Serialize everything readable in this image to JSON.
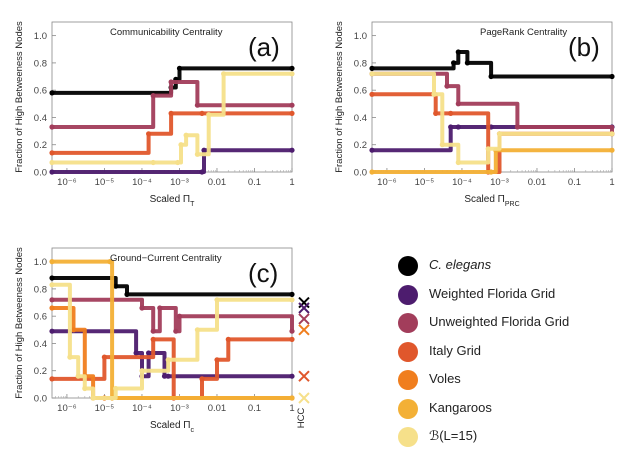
{
  "colors": {
    "c_elegans": "#000000",
    "weighted_florida": "#4d1c6e",
    "unweighted_florida": "#a23d5b",
    "italy": "#e0572c",
    "voles": "#f07e1e",
    "kangaroos": "#f3b036",
    "b_l15": "#f6e08a"
  },
  "legend": [
    {
      "key": "c_elegans",
      "label": "C. elegans",
      "italic": true
    },
    {
      "key": "weighted_florida",
      "label": "Weighted Florida Grid",
      "italic": false
    },
    {
      "key": "unweighted_florida",
      "label": "Unweighted Florida Grid",
      "italic": false
    },
    {
      "key": "italy",
      "label": "Italy Grid",
      "italic": false
    },
    {
      "key": "voles",
      "label": "Voles",
      "italic": false
    },
    {
      "key": "kangaroos",
      "label": "Kangaroos",
      "italic": false
    },
    {
      "key": "b_l15",
      "label": "ℬ(L=15)",
      "italic": false
    }
  ],
  "chart_data": [
    {
      "type": "line",
      "panel_letter": "(a)",
      "title": "Communicability Centrality",
      "xlabel": "Scaled Π",
      "xlabel_sub": "T",
      "ylabel": "Fraction of High Betweeness Nodes",
      "x_scale": "log",
      "xlim": [
        4e-07,
        1
      ],
      "ylim": [
        0,
        1.1
      ],
      "x_ticks": [
        1e-06,
        1e-05,
        0.0001,
        0.001,
        0.01,
        0.1,
        1
      ],
      "x_tick_labels": [
        "10⁻⁶",
        "10⁻⁵",
        "10⁻⁴",
        "10⁻³",
        "0.01",
        "0.1",
        "1"
      ],
      "y_ticks": [
        0,
        0.2,
        0.4,
        0.6,
        0.8,
        1.0
      ],
      "y_tick_labels": [
        "0.0",
        "0.2",
        "0.4",
        "0.6",
        "0.8",
        "1.0"
      ],
      "series": [
        {
          "name": "C. elegans",
          "key": "c_elegans",
          "x": [
            4e-07,
            0.0006,
            0.0008,
            0.001,
            1
          ],
          "y": [
            0.58,
            0.62,
            0.68,
            0.76,
            0.76
          ]
        },
        {
          "name": "Weighted Florida Grid",
          "key": "weighted_florida",
          "x": [
            4e-07,
            0.004,
            0.0045,
            1
          ],
          "y": [
            0,
            0,
            0.16,
            0.16
          ]
        },
        {
          "name": "Unweighted Florida Grid",
          "key": "unweighted_florida",
          "x": [
            4e-07,
            0.0002,
            0.0006,
            0.003,
            1
          ],
          "y": [
            0.33,
            0.56,
            0.66,
            0.49,
            0.49
          ]
        },
        {
          "name": "Italy Grid",
          "key": "italy",
          "x": [
            4e-07,
            0.00015,
            0.0006,
            0.004,
            1
          ],
          "y": [
            0.14,
            0.28,
            0.43,
            0.43,
            0.43
          ]
        },
        {
          "name": "ℬ(L=15)",
          "key": "b_l15",
          "x": [
            4e-07,
            0.0002,
            0.0009,
            0.0011,
            0.0015,
            0.003,
            0.006,
            0.015,
            1
          ],
          "y": [
            0.07,
            0.07,
            0.07,
            0.2,
            0.27,
            0.13,
            0.42,
            0.72,
            0.72
          ]
        }
      ]
    },
    {
      "type": "line",
      "panel_letter": "(b)",
      "title": "PageRank Centrality",
      "xlabel": "Scaled Π",
      "xlabel_sub": "PRC",
      "ylabel": "Fraction of High Betweeness Nodes",
      "x_scale": "log",
      "xlim": [
        4e-07,
        1
      ],
      "ylim": [
        0,
        1.1
      ],
      "x_ticks": [
        1e-06,
        1e-05,
        0.0001,
        0.001,
        0.01,
        0.1,
        1
      ],
      "x_tick_labels": [
        "10⁻⁶",
        "10⁻⁵",
        "10⁻⁴",
        "10⁻³",
        "0.01",
        "0.1",
        "1"
      ],
      "y_ticks": [
        0,
        0.2,
        0.4,
        0.6,
        0.8,
        1.0
      ],
      "y_tick_labels": [
        "0.0",
        "0.2",
        "0.4",
        "0.6",
        "0.8",
        "1.0"
      ],
      "series": [
        {
          "name": "C. elegans",
          "key": "c_elegans",
          "x": [
            4e-07,
            6e-05,
            8e-05,
            0.00014,
            0.0006,
            1
          ],
          "y": [
            0.76,
            0.8,
            0.88,
            0.8,
            0.7,
            0.7
          ]
        },
        {
          "name": "Weighted Florida Grid",
          "key": "weighted_florida",
          "x": [
            4e-07,
            5e-05,
            8e-05,
            0.0006,
            1
          ],
          "y": [
            0.16,
            0.33,
            0.33,
            0.33,
            0.33
          ]
        },
        {
          "name": "Unweighted Florida Grid",
          "key": "unweighted_florida",
          "x": [
            4e-07,
            4e-05,
            8e-05,
            0.003,
            1
          ],
          "y": [
            0.72,
            0.63,
            0.5,
            0.33,
            0.28
          ]
        },
        {
          "name": "Italy Grid",
          "key": "italy",
          "x": [
            4e-07,
            2e-05,
            5e-05,
            0.0005,
            0.001,
            1
          ],
          "y": [
            0.57,
            0.43,
            0.43,
            0,
            0.28,
            0.28
          ]
        },
        {
          "name": "Kangaroos",
          "key": "kangaroos",
          "x": [
            4e-07,
            0.0006,
            0.0008,
            1
          ],
          "y": [
            0,
            0,
            0.16,
            0.16
          ]
        },
        {
          "name": "ℬ(L=15)",
          "key": "b_l15",
          "x": [
            4e-07,
            1.8e-05,
            3e-05,
            8e-05,
            0.0005,
            0.001,
            1
          ],
          "y": [
            0.72,
            0.57,
            0.2,
            0.07,
            0.17,
            0.28,
            0.28
          ]
        }
      ]
    },
    {
      "type": "line",
      "panel_letter": "(c)",
      "title": "Ground−Current Centrality",
      "xlabel": "Scaled Π",
      "xlabel_sub": "c",
      "ylabel": "Fraction of High Betweeness Nodes",
      "x_scale": "log",
      "xlim": [
        4e-07,
        1
      ],
      "ylim": [
        0,
        1.1
      ],
      "x_ticks": [
        1e-06,
        1e-05,
        0.0001,
        0.001,
        0.01,
        0.1,
        1
      ],
      "x_tick_labels": [
        "10⁻⁶",
        "10⁻⁵",
        "10⁻⁴",
        "10⁻³",
        "0.01",
        "0.1",
        "1"
      ],
      "y_ticks": [
        0,
        0.2,
        0.4,
        0.6,
        0.8,
        1.0
      ],
      "y_tick_labels": [
        "0.0",
        "0.2",
        "0.4",
        "0.6",
        "0.8",
        "1.0"
      ],
      "hcc_label": "HCC",
      "hcc_markers": [
        {
          "key": "c_elegans",
          "y": 0.7
        },
        {
          "key": "weighted_florida",
          "y": 0.66
        },
        {
          "key": "unweighted_florida",
          "y": 0.58
        },
        {
          "key": "voles",
          "y": 0.5
        },
        {
          "key": "italy",
          "y": 0.16
        },
        {
          "key": "b_l15",
          "y": 0.0
        }
      ],
      "series": [
        {
          "name": "C. elegans",
          "key": "c_elegans",
          "x": [
            4e-07,
            2e-05,
            4e-05,
            1
          ],
          "y": [
            0.88,
            0.82,
            0.76,
            0.76
          ]
        },
        {
          "name": "Weighted Florida Grid",
          "key": "weighted_florida",
          "x": [
            4e-07,
            7e-05,
            0.0001,
            0.00015,
            0.0004,
            0.0005,
            1
          ],
          "y": [
            0.49,
            0.33,
            0.16,
            0.33,
            0.16,
            0.16,
            0.16
          ]
        },
        {
          "name": "Unweighted Florida Grid",
          "key": "unweighted_florida",
          "x": [
            4e-07,
            0.0001,
            0.0002,
            0.0003,
            0.0008,
            0.001,
            1
          ],
          "y": [
            0.72,
            0.66,
            0.49,
            0.66,
            0.49,
            0.6,
            0.49
          ]
        },
        {
          "name": "Italy Grid",
          "key": "italy",
          "x": [
            4e-07,
            1e-05,
            0.0002,
            0.0007,
            0.004,
            0.01,
            0.02,
            1
          ],
          "y": [
            0.14,
            0.3,
            0.43,
            0,
            0.14,
            0.28,
            0.43,
            0.43
          ]
        },
        {
          "name": "Voles",
          "key": "voles",
          "x": [
            4e-07,
            1.5e-06,
            3e-06,
            5e-06,
            1e-05,
            1
          ],
          "y": [
            0.66,
            0.5,
            0.16,
            0,
            0,
            0
          ]
        },
        {
          "name": "Kangaroos",
          "key": "kangaroos",
          "x": [
            4e-07,
            1.4e-05,
            1.6e-05,
            1
          ],
          "y": [
            1.0,
            1.0,
            0,
            0
          ]
        },
        {
          "name": "ℬ(L=15)",
          "key": "b_l15",
          "x": [
            4e-07,
            1.2e-06,
            2e-06,
            3e-06,
            5e-06,
            2e-05,
            0.0001,
            0.0005,
            0.003,
            0.01,
            1
          ],
          "y": [
            0.83,
            0.3,
            0.16,
            0.07,
            0,
            0.07,
            0.2,
            0.28,
            0.5,
            0.72,
            0.72
          ]
        }
      ]
    }
  ]
}
